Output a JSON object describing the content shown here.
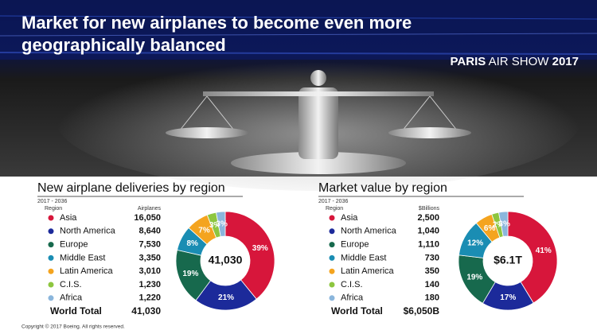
{
  "header": {
    "title_lines": [
      "Market for new airplanes to become even more",
      "geographically balanced"
    ],
    "event_bold": "PARIS",
    "event": "AIR SHOW",
    "year": "2017"
  },
  "chart_data": [
    {
      "type": "donut",
      "title": "New airplane deliveries by region",
      "subtitle": "2017 - 2036",
      "column_labels": [
        "Region",
        "Airplanes"
      ],
      "categories": [
        "Asia",
        "North America",
        "Europe",
        "Middle East",
        "Latin America",
        "C.I.S.",
        "Africa"
      ],
      "values": [
        16050,
        8640,
        7530,
        3350,
        3010,
        1230,
        1220
      ],
      "value_labels": [
        "16,050",
        "8,640",
        "7,530",
        "3,350",
        "3,010",
        "1,230",
        "1,220"
      ],
      "percent_labels": [
        "39%",
        "21%",
        "19%",
        "8%",
        "7%",
        "3%",
        "3%"
      ],
      "colors": [
        "#d7163b",
        "#1c2a9a",
        "#17694d",
        "#1a8db3",
        "#f4a41f",
        "#8dc63f",
        "#8bb6dc"
      ],
      "total_label": "World Total",
      "total": "41,030",
      "center_label": "41,030"
    },
    {
      "type": "donut",
      "title": "Market value by region",
      "subtitle": "2017 - 2036",
      "column_labels": [
        "Region",
        "$Billions"
      ],
      "categories": [
        "Asia",
        "North America",
        "Europe",
        "Middle East",
        "Latin America",
        "C.I.S.",
        "Africa"
      ],
      "values": [
        2500,
        1040,
        1110,
        730,
        350,
        140,
        180
      ],
      "value_labels": [
        "2,500",
        "1,040",
        "1,110",
        "730",
        "350",
        "140",
        "180"
      ],
      "percent_labels": [
        "41%",
        "17%",
        "19%",
        "12%",
        "6%",
        "2%",
        "3%"
      ],
      "colors": [
        "#d7163b",
        "#1c2a9a",
        "#17694d",
        "#1a8db3",
        "#f4a41f",
        "#8dc63f",
        "#8bb6dc"
      ],
      "total_label": "World Total",
      "total": "$6,050B",
      "center_label": "$6.1T"
    }
  ],
  "footer": "Copyright © 2017 Boeing. All rights reserved."
}
